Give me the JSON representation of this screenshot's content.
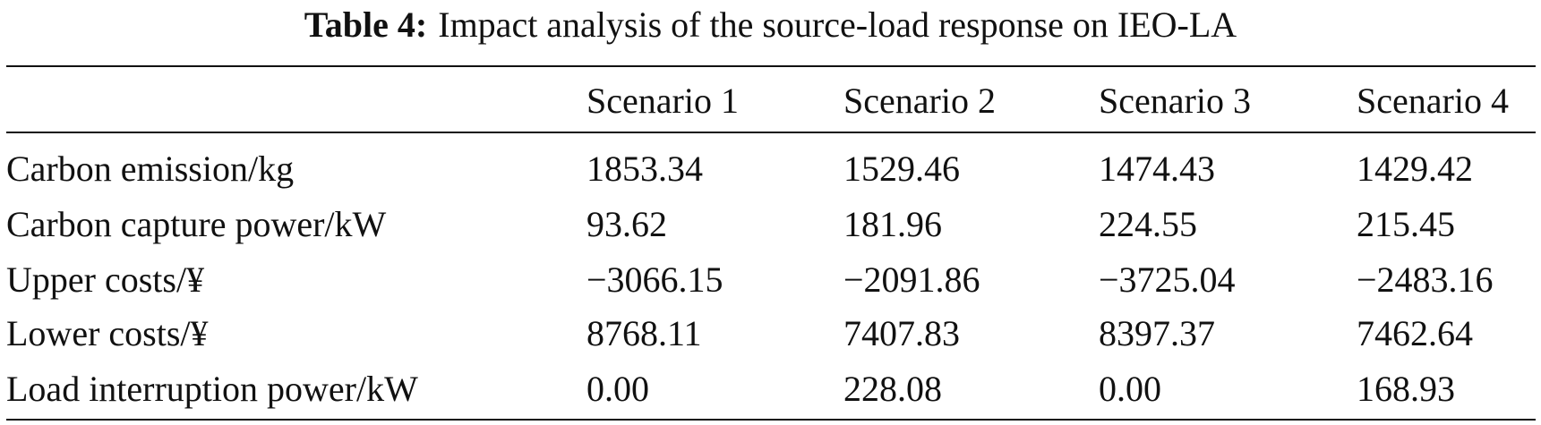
{
  "caption": {
    "label": "Table 4:",
    "text": "Impact analysis of the source-load response on IEO-LA"
  },
  "table": {
    "header": [
      "Scenario 1",
      "Scenario 2",
      "Scenario 3",
      "Scenario 4"
    ],
    "rows": [
      [
        "Carbon emission/kg",
        "1853.34",
        "1529.46",
        "1474.43",
        "1429.42"
      ],
      [
        "Carbon capture power/kW",
        "93.62",
        "181.96",
        "224.55",
        "215.45"
      ],
      [
        "Upper costs/¥",
        "−3066.15",
        "−2091.86",
        "−3725.04",
        "−2483.16"
      ],
      [
        "Lower costs/¥",
        "8768.11",
        "7407.83",
        "8397.37",
        "7462.64"
      ],
      [
        "Load interruption power/kW",
        "0.00",
        "228.08",
        "0.00",
        "168.93"
      ]
    ]
  }
}
